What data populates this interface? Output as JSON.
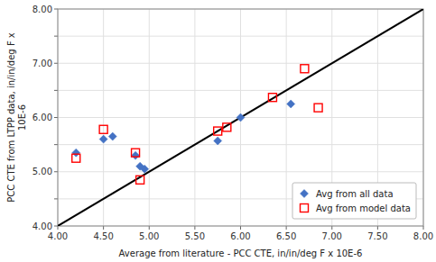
{
  "chart_data": {
    "type": "scatter",
    "x_label": "Average from literature - PCC CTE, in/in/deg F x 10E-6",
    "y_label": "PCC CTE from LTPP data, in/in/deg F x\n10E-6",
    "series": [
      {
        "type": "line",
        "color": "black",
        "line_style": "solid",
        "x": [
          4.0,
          8.0
        ],
        "values": [
          4.0,
          8.0
        ]
      },
      {
        "name": "Avg from all data",
        "color": "#4472C4",
        "marker": "diamond",
        "x": [
          4.2,
          4.5,
          4.6,
          4.85,
          4.9,
          4.95,
          5.75,
          6.0,
          6.55
        ],
        "values": [
          5.35,
          5.6,
          5.65,
          5.3,
          5.1,
          5.05,
          5.57,
          6.0,
          6.25
        ]
      },
      {
        "name": "Avg from model data",
        "color": "#FF0000",
        "marker": "square",
        "x": [
          4.2,
          4.5,
          4.85,
          4.9,
          5.75,
          5.85,
          6.35,
          6.7,
          6.85
        ],
        "values": [
          5.25,
          5.78,
          5.35,
          4.85,
          5.75,
          5.82,
          6.37,
          6.9,
          6.18
        ]
      }
    ],
    "xlim": [
      4.0,
      8.0
    ],
    "ylim": [
      4.0,
      8.0
    ],
    "xticks": [
      {
        "value": 4.0,
        "label": "4.00"
      },
      {
        "value": 4.5,
        "label": "4.50"
      },
      {
        "value": 5.0,
        "label": "5.00"
      },
      {
        "value": 5.5,
        "label": "5.50"
      },
      {
        "value": 6.0,
        "label": "6.00"
      },
      {
        "value": 6.5,
        "label": "6.50"
      },
      {
        "value": 7.0,
        "label": "7.00"
      },
      {
        "value": 7.5,
        "label": "7.50"
      },
      {
        "value": 8.0,
        "label": "8.00"
      }
    ],
    "yticks": [
      {
        "value": 4.0,
        "label": "4.00"
      },
      {
        "value": 4.5,
        "label": null
      },
      {
        "value": 5.0,
        "label": "5.00"
      },
      {
        "value": 5.5,
        "label": null
      },
      {
        "value": 6.0,
        "label": "6.00"
      },
      {
        "value": 6.5,
        "label": null
      },
      {
        "value": 7.0,
        "label": "7.00"
      },
      {
        "value": 7.5,
        "label": null
      },
      {
        "value": 8.0,
        "label": "8.00"
      }
    ],
    "grid": true,
    "legend": "lower right"
  }
}
